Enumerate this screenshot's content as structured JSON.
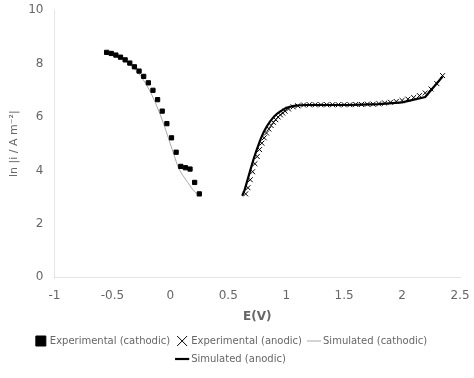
{
  "chart_data": {
    "type": "line",
    "xlabel": "E(V)",
    "ylabel": "ln |i / A m⁻²|",
    "xlim": [
      -1,
      2.5
    ],
    "ylim": [
      0,
      10
    ],
    "xticks": [
      -1,
      -0.5,
      0,
      0.5,
      1,
      1.5,
      2,
      2.5
    ],
    "yticks": [
      0,
      2,
      4,
      6,
      8,
      10
    ],
    "grid": false,
    "legend": "bottom",
    "series": [
      {
        "name": "Simulated (cathodic)",
        "type": "line",
        "color": "#aaaaaa",
        "line_style": "solid",
        "x": [
          -0.57,
          -0.53,
          -0.49,
          -0.45,
          -0.41,
          -0.37,
          -0.33,
          -0.29,
          -0.25,
          -0.21,
          -0.17,
          -0.13,
          -0.09,
          -0.05,
          -0.01,
          0.03,
          0.07,
          0.11,
          0.15,
          0.19,
          0.23,
          0.26
        ],
        "values": [
          8.45,
          8.4,
          8.34,
          8.26,
          8.16,
          8.04,
          7.89,
          7.72,
          7.5,
          7.24,
          6.92,
          6.55,
          6.12,
          5.65,
          5.12,
          4.6,
          4.08,
          3.8,
          3.55,
          3.3,
          3.12,
          3.05
        ]
      },
      {
        "name": "Simulated (anodic)",
        "type": "line",
        "color": "#000000",
        "line_style": "solid",
        "x": [
          0.62,
          0.64,
          0.66,
          0.68,
          0.7,
          0.72,
          0.74,
          0.76,
          0.78,
          0.8,
          0.82,
          0.84,
          0.86,
          0.88,
          0.9,
          0.92,
          0.94,
          0.96,
          0.99,
          1.03,
          1.07,
          1.12,
          1.17,
          1.22,
          1.27,
          1.35,
          1.45,
          1.55,
          1.65,
          1.8,
          2.0,
          2.2,
          2.35
        ],
        "values": [
          3.05,
          3.25,
          3.55,
          3.85,
          4.15,
          4.44,
          4.7,
          4.95,
          5.18,
          5.38,
          5.55,
          5.7,
          5.83,
          5.94,
          6.04,
          6.12,
          6.18,
          6.24,
          6.32,
          6.38,
          6.42,
          6.44,
          6.45,
          6.45,
          6.45,
          6.45,
          6.45,
          6.45,
          6.46,
          6.48,
          6.55,
          6.75,
          7.52
        ]
      },
      {
        "name": "Experimental (cathodic)",
        "type": "scatter",
        "color": "#000000",
        "marker": "square",
        "x": [
          -0.55,
          -0.51,
          -0.47,
          -0.43,
          -0.39,
          -0.35,
          -0.31,
          -0.27,
          -0.23,
          -0.19,
          -0.15,
          -0.11,
          -0.07,
          -0.03,
          0.01,
          0.05,
          0.09,
          0.13,
          0.17,
          0.21,
          0.25
        ],
        "values": [
          8.42,
          8.38,
          8.32,
          8.24,
          8.14,
          8.02,
          7.88,
          7.72,
          7.52,
          7.28,
          7.0,
          6.65,
          6.22,
          5.75,
          5.22,
          4.68,
          4.15,
          4.1,
          4.05,
          3.55,
          3.12
        ]
      },
      {
        "name": "Experimental (anodic)",
        "type": "scatter",
        "color": "#000000",
        "marker": "x",
        "x": [
          0.65,
          0.67,
          0.69,
          0.71,
          0.73,
          0.75,
          0.77,
          0.79,
          0.81,
          0.83,
          0.85,
          0.87,
          0.89,
          0.91,
          0.93,
          0.95,
          0.97,
          0.99,
          1.02,
          1.06,
          1.1,
          1.15,
          1.2,
          1.25,
          1.3,
          1.35,
          1.4,
          1.45,
          1.5,
          1.55,
          1.6,
          1.65,
          1.7,
          1.75,
          1.8,
          1.85,
          1.9,
          1.95,
          2.0,
          2.05,
          2.1,
          2.15,
          2.2,
          2.25,
          2.3,
          2.35
        ],
        "values": [
          3.12,
          3.35,
          3.65,
          3.95,
          4.25,
          4.52,
          4.78,
          5.02,
          5.22,
          5.4,
          5.55,
          5.68,
          5.8,
          5.9,
          6.0,
          6.08,
          6.15,
          6.22,
          6.3,
          6.38,
          6.42,
          6.45,
          6.46,
          6.46,
          6.46,
          6.46,
          6.46,
          6.46,
          6.46,
          6.46,
          6.47,
          6.47,
          6.48,
          6.48,
          6.5,
          6.52,
          6.55,
          6.58,
          6.62,
          6.67,
          6.73,
          6.8,
          6.9,
          7.05,
          7.25,
          7.55
        ]
      }
    ]
  }
}
